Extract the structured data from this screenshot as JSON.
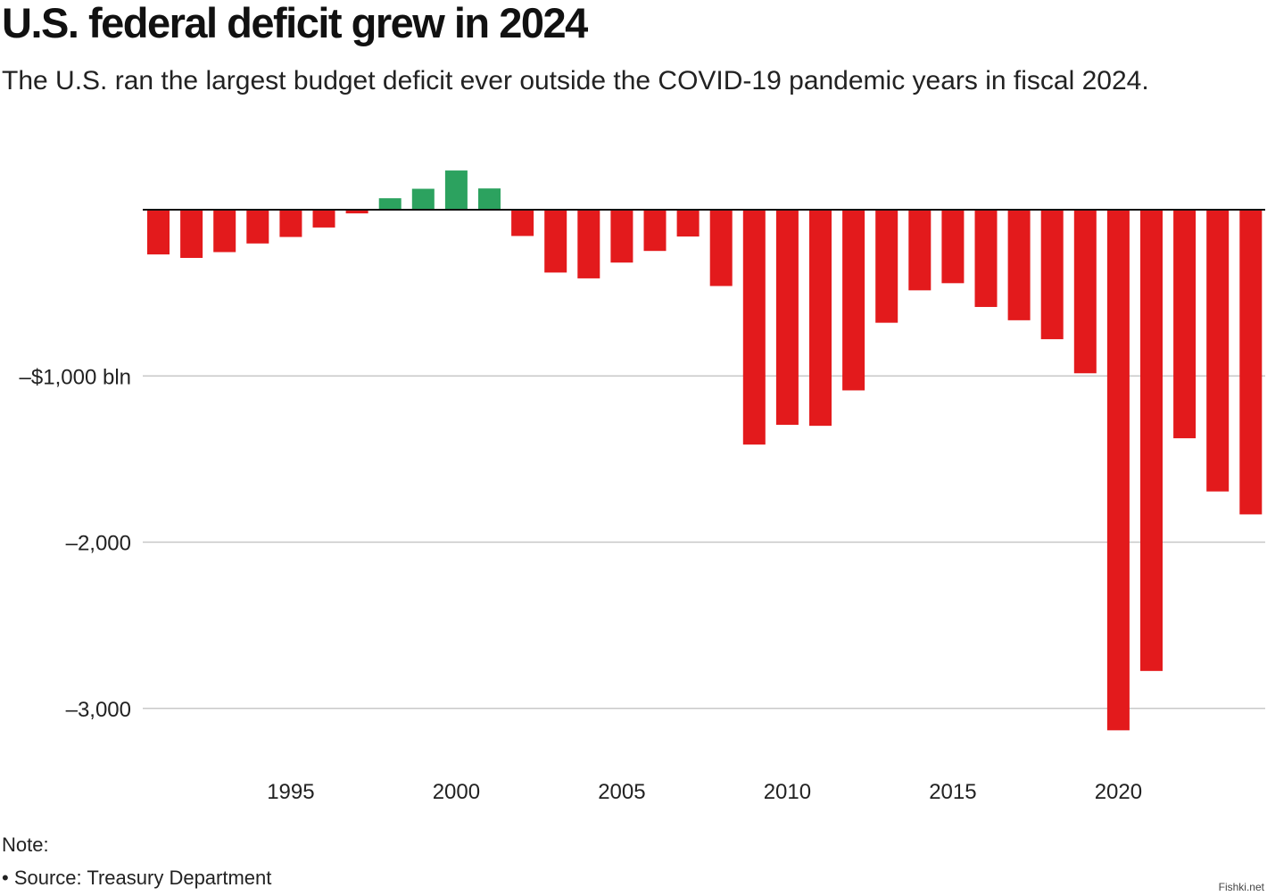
{
  "header": {
    "title": "U.S. federal deficit grew in 2024",
    "subtitle": "The U.S. ran the largest budget deficit ever outside the COVID-19 pandemic years in fiscal 2024."
  },
  "footer": {
    "note": "Note:",
    "source": "• Source: Treasury Department",
    "watermark": "Fishki.net"
  },
  "colors": {
    "deficit": "#e31a1c",
    "surplus": "#2ca25f",
    "grid": "#c8c8c8",
    "axis": "#111111"
  },
  "chart_data": {
    "type": "bar",
    "title": "U.S. federal deficit grew in 2024",
    "xlabel": "",
    "ylabel": "",
    "x": [
      1991,
      1992,
      1993,
      1994,
      1995,
      1996,
      1997,
      1998,
      1999,
      2000,
      2001,
      2002,
      2003,
      2004,
      2005,
      2006,
      2007,
      2008,
      2009,
      2010,
      2011,
      2012,
      2013,
      2014,
      2015,
      2016,
      2017,
      2018,
      2019,
      2020,
      2021,
      2022,
      2023,
      2024
    ],
    "values": [
      -269,
      -290,
      -255,
      -203,
      -164,
      -107,
      -22,
      69,
      126,
      236,
      128,
      -158,
      -378,
      -413,
      -318,
      -248,
      -161,
      -459,
      -1413,
      -1294,
      -1300,
      -1087,
      -680,
      -485,
      -442,
      -585,
      -665,
      -779,
      -984,
      -3132,
      -2775,
      -1375,
      -1695,
      -1833
    ],
    "unit": "bln",
    "xticks": [
      1995,
      2000,
      2005,
      2010,
      2015,
      2020
    ],
    "yticks": [
      {
        "value": -1000,
        "label": "–$1,000 bln"
      },
      {
        "value": -2000,
        "label": "–2,000"
      },
      {
        "value": -3000,
        "label": "–3,000"
      }
    ],
    "ylim": [
      -3400,
      300
    ],
    "grid": true,
    "legend": "none"
  }
}
